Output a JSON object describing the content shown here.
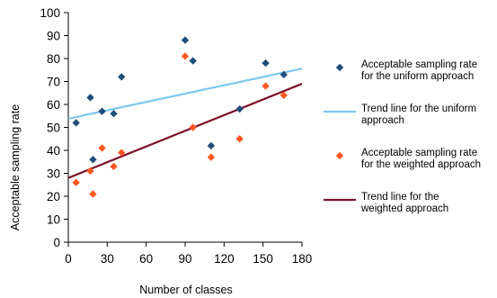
{
  "chart_data": {
    "type": "scatter",
    "title": "",
    "xlabel": "Number of classes",
    "ylabel": "Acceptable sampling rate",
    "xlim": [
      0,
      180
    ],
    "ylim": [
      0,
      100
    ],
    "xticks": [
      0,
      30,
      60,
      90,
      120,
      150,
      180
    ],
    "yticks": [
      0,
      10,
      20,
      30,
      40,
      50,
      60,
      70,
      80,
      90,
      100
    ],
    "grid": false,
    "legend_position": "right",
    "series": [
      {
        "name": " Acceptable sampling rate for the uniform approach",
        "legend_lines": [
          " Acceptable sampling rate",
          "for the uniform approach"
        ],
        "kind": "points",
        "marker": "diamond",
        "color": "#1f4e79",
        "x": [
          6,
          17,
          19,
          26,
          35,
          41,
          90,
          96,
          110,
          132,
          152,
          166
        ],
        "y": [
          52,
          63,
          36,
          57,
          56,
          72,
          88,
          79,
          42,
          58,
          78,
          73
        ]
      },
      {
        "name": "Trend line for the uniform approach",
        "legend_lines": [
          "Trend line for the uniform",
          "approach"
        ],
        "kind": "line",
        "color": "#7ec8f0",
        "x": [
          0,
          180
        ],
        "y": [
          53.8,
          75.6
        ]
      },
      {
        "name": "Acceptable sampling rate for the weighted approach",
        "legend_lines": [
          "Acceptable sampling rate",
          "for the weighted approach"
        ],
        "kind": "points",
        "marker": "diamond",
        "color": "#ff5722",
        "x": [
          6,
          17,
          19,
          26,
          35,
          41,
          90,
          96,
          110,
          132,
          152,
          166
        ],
        "y": [
          26,
          31,
          21,
          41,
          33,
          39,
          81,
          50,
          37,
          45,
          68,
          64
        ]
      },
      {
        "name": "Trend line for the weighted approach",
        "legend_lines": [
          "Trend line for the",
          "weighted approach"
        ],
        "kind": "line",
        "color": "#7b1128",
        "x": [
          0,
          180
        ],
        "y": [
          28,
          69
        ]
      }
    ]
  }
}
